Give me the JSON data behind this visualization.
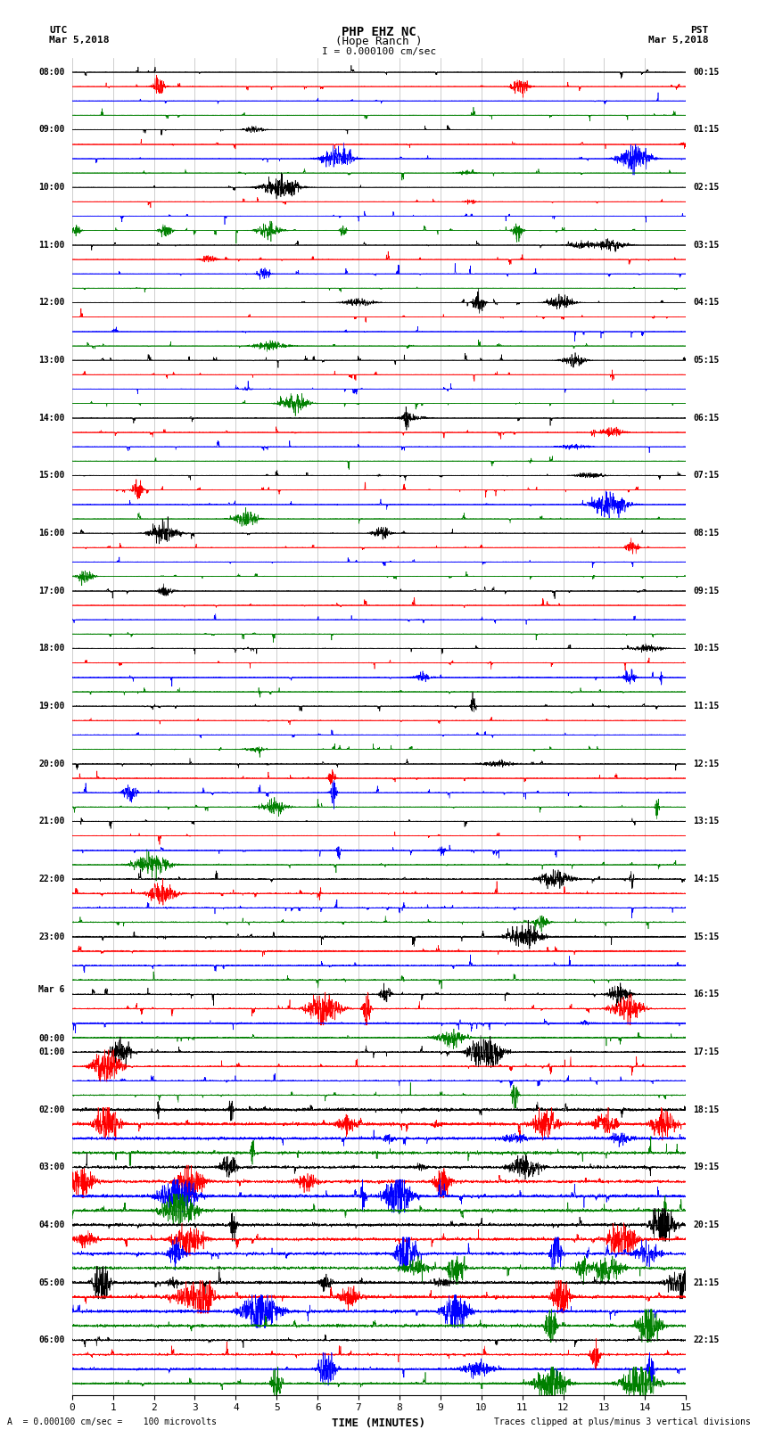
{
  "title_line1": "PHP EHZ NC",
  "title_line2": "(Hope Ranch )",
  "title_line3": "I = 0.000100 cm/sec",
  "left_header1": "UTC",
  "left_header2": "Mar 5,2018",
  "right_header1": "PST",
  "right_header2": "Mar 5,2018",
  "xlabel": "TIME (MINUTES)",
  "footer_left": "A  = 0.000100 cm/sec =    100 microvolts",
  "footer_right": "Traces clipped at plus/minus 3 vertical divisions",
  "xlim": [
    0,
    15
  ],
  "xticks": [
    0,
    1,
    2,
    3,
    4,
    5,
    6,
    7,
    8,
    9,
    10,
    11,
    12,
    13,
    14,
    15
  ],
  "trace_colors": [
    "black",
    "red",
    "blue",
    "green"
  ],
  "n_rows": 92,
  "utc_labels_idx": [
    0,
    4,
    8,
    12,
    16,
    20,
    24,
    28,
    32,
    36,
    40,
    44,
    48,
    52,
    56,
    60,
    64,
    67,
    68,
    72,
    76,
    80,
    84,
    88
  ],
  "utc_labels_text": [
    "08:00",
    "09:00",
    "10:00",
    "11:00",
    "12:00",
    "13:00",
    "14:00",
    "15:00",
    "16:00",
    "17:00",
    "18:00",
    "19:00",
    "20:00",
    "21:00",
    "22:00",
    "23:00",
    "Mar 6",
    "00:00",
    "01:00",
    "02:00",
    "03:00",
    "04:00",
    "05:00",
    "06:00"
  ],
  "pst_labels_idx": [
    0,
    4,
    8,
    12,
    16,
    20,
    24,
    28,
    32,
    36,
    40,
    44,
    48,
    52,
    56,
    60,
    64,
    68,
    72,
    76,
    80,
    84,
    88
  ],
  "pst_labels_text": [
    "00:15",
    "01:15",
    "02:15",
    "03:15",
    "04:15",
    "05:15",
    "06:15",
    "07:15",
    "08:15",
    "09:15",
    "10:15",
    "11:15",
    "12:15",
    "13:15",
    "14:15",
    "15:15",
    "16:15",
    "17:15",
    "18:15",
    "19:15",
    "20:15",
    "21:15",
    "22:15"
  ],
  "background_color": "white",
  "grid_color": "#bbbbbb",
  "noise_seed": 12345
}
